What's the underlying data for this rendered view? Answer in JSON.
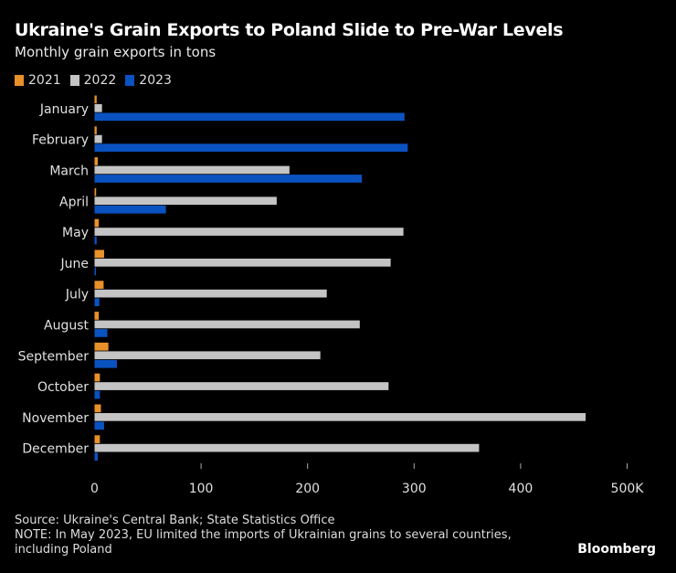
{
  "chart_data": {
    "type": "bar",
    "orientation": "horizontal",
    "title": "Ukraine's Grain Exports to Poland Slide to Pre-War Levels",
    "subtitle": "Monthly grain exports in tons",
    "xlabel": "",
    "ylabel": "",
    "xlim": [
      0,
      500000
    ],
    "x_ticks": [
      {
        "value": 0,
        "label": "0"
      },
      {
        "value": 100000,
        "label": "100"
      },
      {
        "value": 200000,
        "label": "200"
      },
      {
        "value": 300000,
        "label": "300"
      },
      {
        "value": 400000,
        "label": "400"
      },
      {
        "value": 500000,
        "label": "500K"
      }
    ],
    "grid": false,
    "legend_position": "top-left",
    "categories": [
      "January",
      "February",
      "March",
      "April",
      "May",
      "June",
      "July",
      "August",
      "September",
      "October",
      "November",
      "December"
    ],
    "series": [
      {
        "name": "2021",
        "color": "#E8912A",
        "values": [
          2000,
          2000,
          3000,
          1500,
          4000,
          9000,
          8500,
          4000,
          13000,
          5000,
          6000,
          5000
        ]
      },
      {
        "name": "2022",
        "color": "#C4C4C4",
        "values": [
          7000,
          7000,
          183000,
          171000,
          290000,
          278000,
          218000,
          249000,
          212000,
          276000,
          461000,
          361000
        ]
      },
      {
        "name": "2023",
        "color": "#0A52C0",
        "values": [
          291000,
          294000,
          251000,
          67000,
          2000,
          1000,
          4500,
          12000,
          21000,
          5000,
          9000,
          3000
        ]
      }
    ]
  },
  "footer": {
    "source": "Source: Ukraine's Central Bank; State Statistics Office",
    "note": "NOTE: In May 2023, EU limited the imports of Ukrainian grains to several countries, including Poland"
  },
  "brand": "Bloomberg"
}
